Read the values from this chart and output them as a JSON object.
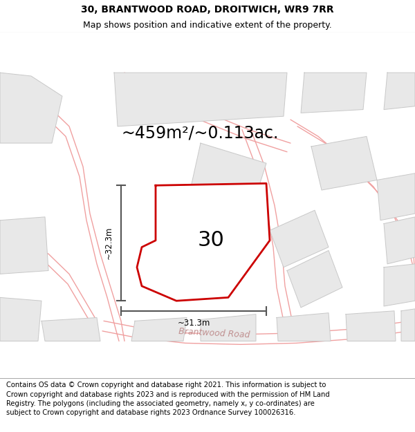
{
  "title_line1": "30, BRANTWOOD ROAD, DROITWICH, WR9 7RR",
  "title_line2": "Map shows position and indicative extent of the property.",
  "area_text": "~459m²/~0.113ac.",
  "property_number": "30",
  "dim_vertical": "~32.3m",
  "dim_horizontal": "~31.3m",
  "road_label": "Brantwood Road",
  "footer_text": "Contains OS data © Crown copyright and database right 2021. This information is subject to Crown copyright and database rights 2023 and is reproduced with the permission of HM Land Registry. The polygons (including the associated geometry, namely x, y co-ordinates) are subject to Crown copyright and database rights 2023 Ordnance Survey 100026316.",
  "map_bg": "#ffffff",
  "property_fill": "#ffffff",
  "property_outline": "#cc0000",
  "neighbor_fill": "#e8e8e8",
  "neighbor_outline": "#c8c8c8",
  "road_lines_color": "#f0a0a0",
  "road_outline_color": "#e08080",
  "text_color": "#000000",
  "footer_bg": "#ffffff",
  "header_bg": "#ffffff",
  "title_fontsize": 10,
  "subtitle_fontsize": 9,
  "area_fontsize": 17,
  "dim_fontsize": 8.5,
  "number_fontsize": 22,
  "footer_fontsize": 7.2,
  "road_label_color": "#c09090",
  "road_label_fontsize": 9
}
